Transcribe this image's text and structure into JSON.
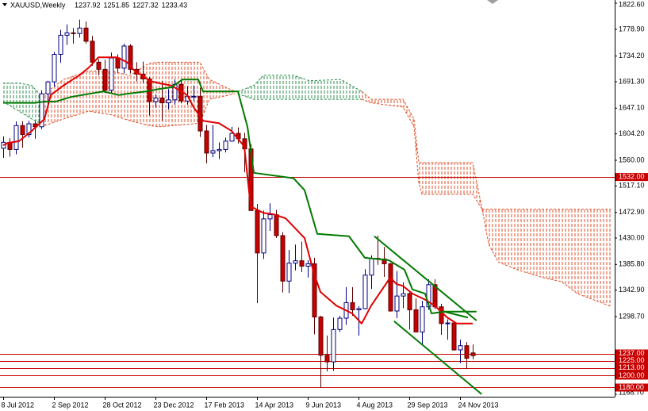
{
  "chart_data": {
    "type": "candlestick",
    "title": "XAUUSD,Weekly",
    "categories": [
      "8 Jul 2012",
      null,
      null,
      null,
      null,
      null,
      null,
      null,
      "2 Sep 2012",
      null,
      null,
      null,
      null,
      null,
      null,
      null,
      "28 Oct 2012",
      null,
      null,
      null,
      null,
      null,
      null,
      null,
      "23 Dec 2012",
      null,
      null,
      null,
      null,
      null,
      null,
      null,
      "17 Feb 2013",
      null,
      null,
      null,
      null,
      null,
      null,
      null,
      "14 Apr 2013",
      null,
      null,
      null,
      null,
      null,
      null,
      null,
      "9 Jun 2013",
      null,
      null,
      null,
      null,
      null,
      null,
      null,
      "4 Aug 2013",
      null,
      null,
      null,
      null,
      null,
      null,
      null,
      "29 Sep 2013",
      null,
      null,
      null,
      null,
      null,
      null,
      null,
      "24 Nov 2013",
      null,
      null
    ],
    "open": [
      1580,
      1590,
      1578,
      1618,
      1603,
      1621,
      1616,
      1671,
      1691,
      1737,
      1769,
      1773,
      1772,
      1781,
      1759,
      1724,
      1712,
      1677,
      1731,
      1714,
      1751,
      1712,
      1704,
      1696,
      1658,
      1664,
      1656,
      1661,
      1687,
      1659,
      1667,
      1667,
      1609,
      1572,
      1576,
      1578,
      1592,
      1605,
      1596,
      1579,
      1476,
      1405,
      1462,
      1469,
      1434,
      1358,
      1388,
      1392,
      1383,
      1387,
      1298,
      1234,
      1223,
      1277,
      1296,
      1322,
      1310,
      1312,
      1368,
      1396,
      1395,
      1387,
      1308,
      1333,
      1337,
      1310,
      1273,
      1315,
      1352,
      1315,
      1287,
      1288,
      1243,
      1250,
      1237.92
    ],
    "high": [
      1600,
      1597,
      1625,
      1625,
      1626,
      1626,
      1677,
      1693,
      1741,
      1778,
      1787,
      1781,
      1795,
      1792,
      1768,
      1729,
      1728,
      1740,
      1737,
      1755,
      1754,
      1724,
      1725,
      1699,
      1670,
      1693,
      1679,
      1695,
      1694,
      1684,
      1685,
      1681,
      1619,
      1619,
      1590,
      1598,
      1616,
      1615,
      1606,
      1587,
      1487,
      1476,
      1488,
      1477,
      1440,
      1410,
      1419,
      1424,
      1393,
      1397,
      1300,
      1267,
      1297,
      1300,
      1348,
      1348,
      1316,
      1378,
      1401,
      1434,
      1415,
      1388,
      1375,
      1356,
      1339,
      1329,
      1325,
      1361,
      1361,
      1320,
      1294,
      1289,
      1260,
      1256,
      1251.85
    ],
    "low": [
      1564,
      1566,
      1570,
      1581,
      1598,
      1596,
      1612,
      1651,
      1683,
      1723,
      1753,
      1755,
      1765,
      1755,
      1718,
      1702,
      1673,
      1673,
      1706,
      1705,
      1705,
      1692,
      1689,
      1635,
      1648,
      1626,
      1645,
      1653,
      1655,
      1653,
      1659,
      1599,
      1555,
      1565,
      1562,
      1573,
      1591,
      1588,
      1540,
      1476,
      1321,
      1395,
      1442,
      1430,
      1339,
      1338,
      1376,
      1373,
      1364,
      1269,
      1180,
      1207,
      1208,
      1273,
      1285,
      1300,
      1267,
      1311,
      1345,
      1385,
      1365,
      1307,
      1296,
      1313,
      1277,
      1273,
      1251,
      1310,
      1311,
      1268,
      1260,
      1242,
      1221,
      1211,
      1227.32
    ],
    "close": [
      1590,
      1578,
      1618,
      1603,
      1621,
      1616,
      1671,
      1691,
      1737,
      1769,
      1773,
      1772,
      1781,
      1759,
      1724,
      1712,
      1677,
      1731,
      1714,
      1751,
      1712,
      1704,
      1696,
      1658,
      1664,
      1656,
      1661,
      1687,
      1659,
      1667,
      1667,
      1609,
      1572,
      1576,
      1578,
      1592,
      1605,
      1596,
      1579,
      1476,
      1405,
      1462,
      1469,
      1434,
      1358,
      1388,
      1392,
      1383,
      1387,
      1298,
      1234,
      1223,
      1277,
      1296,
      1322,
      1310,
      1312,
      1368,
      1396,
      1395,
      1387,
      1308,
      1333,
      1337,
      1310,
      1273,
      1315,
      1352,
      1315,
      1287,
      1288,
      1243,
      1250,
      1229,
      1233.43
    ],
    "colors": {
      "up": "#ffffff",
      "up_line": "#000080",
      "down": "#c80000",
      "down_line": "#5a0000"
    },
    "ylim": [
      1168.7,
      1822.6
    ],
    "yticks": [
      {
        "value": 1822.6,
        "label": "1822.60"
      },
      {
        "value": 1778.9,
        "label": "1778.90"
      },
      {
        "value": 1734.2,
        "label": "1734.20"
      },
      {
        "value": 1691.3,
        "label": "1691.30"
      },
      {
        "value": 1647.1,
        "label": "1647.10"
      },
      {
        "value": 1604.2,
        "label": "1604.20"
      },
      {
        "value": 1560,
        "label": "1560.00"
      },
      {
        "value": 1517.1,
        "label": "1517.10"
      },
      {
        "value": 1472.9,
        "label": "1472.90"
      },
      {
        "value": 1430,
        "label": "1430.00"
      },
      {
        "value": 1385.8,
        "label": "1385.80"
      },
      {
        "value": 1342.9,
        "label": "1342.90"
      },
      {
        "value": 1298.7,
        "label": "1298.70"
      },
      {
        "value": 1168.7,
        "label": "1168.70"
      }
    ],
    "grid": false,
    "levels": {
      "color": "#c80000",
      "items": [
        {
          "value": 1532,
          "label": "1532.00"
        },
        {
          "value": 1237,
          "label": "1237.00"
        },
        {
          "value": 1225,
          "label": "1225.00"
        },
        {
          "value": 1213,
          "label": "1213.00"
        },
        {
          "value": 1200,
          "label": "1200.00"
        },
        {
          "value": 1180,
          "label": "1180.00"
        }
      ]
    },
    "lines": [
      {
        "color": "#e00000",
        "width": 2,
        "x": [
          0,
          0.75,
          2.5,
          4.5,
          6.5,
          7.5,
          9.5,
          12,
          13.5,
          15,
          18,
          19.5,
          21,
          22,
          23,
          24.5,
          26.5,
          29,
          30,
          31.5,
          34,
          36,
          37,
          38,
          39,
          41,
          42.5,
          44.5,
          47.5,
          49,
          50,
          52.5,
          55,
          56.5,
          58,
          61,
          62,
          63,
          64.5,
          66.5,
          68,
          70,
          71.5,
          74
        ],
        "values": [
          1585,
          1589,
          1592,
          1609,
          1629,
          1669,
          1685,
          1702,
          1715,
          1732,
          1732,
          1724,
          1706,
          1702,
          1693,
          1689,
          1685,
          1669,
          1649,
          1626,
          1622,
          1609,
          1596,
          1583,
          1483,
          1472,
          1470,
          1463,
          1430,
          1370,
          1340,
          1317,
          1304,
          1287,
          1317,
          1364,
          1353,
          1350,
          1337,
          1327,
          1317,
          1297,
          1287,
          1287
        ]
      },
      {
        "color": "#007a00",
        "width": 2,
        "x": [
          0,
          5,
          6.5,
          8.25,
          10.75,
          15.75,
          18.25,
          19.5,
          22.5,
          24.5,
          26.5,
          28.25,
          30.75,
          31.5,
          37,
          38.5,
          39.5,
          45.75,
          47.5,
          49.5,
          54.5,
          57,
          60.75,
          63.25,
          64.5,
          66.5,
          67.5,
          69.5,
          73.25
        ],
        "values": [
          1656,
          1656,
          1658,
          1658,
          1666,
          1675,
          1669,
          1671,
          1675,
          1679,
          1682,
          1695,
          1695,
          1675,
          1675,
          1616,
          1539,
          1530,
          1510,
          1437,
          1433,
          1397,
          1393,
          1377,
          1344,
          1337,
          1304,
          1307,
          1297
        ]
      },
      {
        "color": "#007a00",
        "width": 2,
        "x": [
          58.5,
          74.6
        ],
        "values": [
          1433,
          1292
        ]
      },
      {
        "color": "#007a00",
        "width": 2,
        "x": [
          61.6,
          75.4
        ],
        "values": [
          1291,
          1169
        ]
      },
      {
        "color": "#007a00",
        "width": 2,
        "x": [
          69.25,
          74.6
        ],
        "values": [
          1307,
          1307
        ]
      }
    ],
    "cloud": [
      {
        "color": "#2f8f4f",
        "x": [
          0,
          2.5,
          4.5,
          6.5
        ],
        "upper": [
          1689,
          1689,
          1685,
          1662
        ],
        "lower": [
          1658,
          1642,
          1629,
          1618
        ]
      },
      {
        "color": "#e0502a",
        "x": [
          6.5,
          9.5,
          13.5,
          17,
          20,
          23,
          24.5,
          27,
          31,
          32.5,
          36.5
        ],
        "upper": [
          1671,
          1695,
          1709,
          1709,
          1702,
          1722,
          1724,
          1724,
          1724,
          1695,
          1675
        ],
        "lower": [
          1618,
          1629,
          1642,
          1636,
          1626,
          1618,
          1616,
          1618,
          1622,
          1662,
          1671
        ]
      },
      {
        "color": "#2f8f4f",
        "x": [
          37,
          39.5,
          41,
          45.75,
          48.25,
          53.25,
          56.5
        ],
        "upper": [
          1675,
          1685,
          1702,
          1702,
          1693,
          1695,
          1675
        ],
        "lower": [
          1671,
          1662,
          1662,
          1662,
          1662,
          1662,
          1662
        ]
      },
      {
        "color": "#e0502a",
        "x": [
          56.5,
          58,
          63,
          64.75,
          65.5,
          66,
          74,
          75.5
        ],
        "upper": [
          1675,
          1662,
          1662,
          1629,
          1556,
          1556,
          1556,
          1478
        ],
        "lower": [
          1662,
          1656,
          1649,
          1616,
          1523,
          1503,
          1503,
          1478
        ]
      },
      {
        "color": "#e0502a",
        "x": [
          75.5,
          76.5,
          78,
          81,
          85,
          88,
          90.5,
          95.75
        ],
        "upper": [
          1478,
          1478,
          1478,
          1478,
          1478,
          1478,
          1478,
          1478
        ],
        "lower": [
          1478,
          1420,
          1390,
          1377,
          1364,
          1357,
          1337,
          1316
        ]
      }
    ]
  }
}
